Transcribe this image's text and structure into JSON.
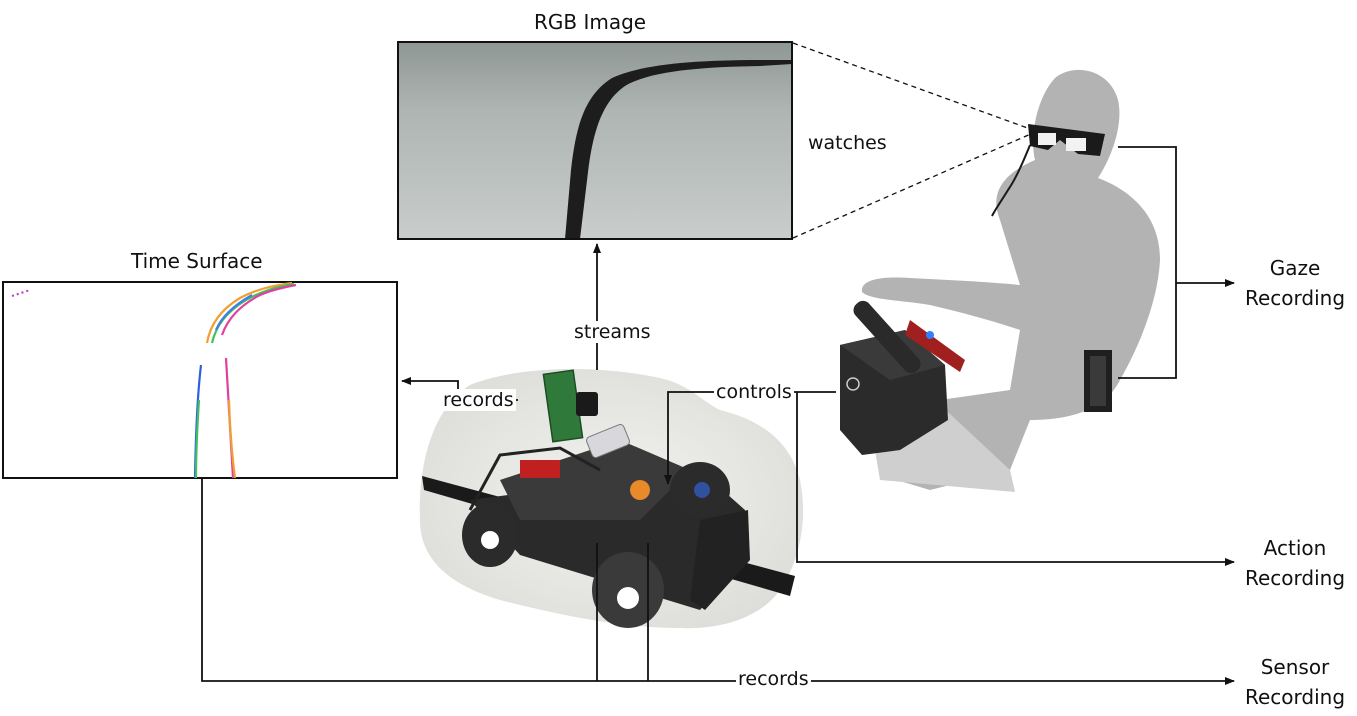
{
  "titles": {
    "rgb_image": "RGB Image",
    "time_surface": "Time Surface"
  },
  "edges": {
    "watches": "watches",
    "streams": "streams",
    "records_left": "records",
    "controls": "controls",
    "records_bottom": "records"
  },
  "outputs": {
    "gaze": [
      "Gaze",
      "Recording"
    ],
    "action": [
      "Action",
      "Recording"
    ],
    "sensor": [
      "Sensor",
      "Recording"
    ]
  },
  "colors": {
    "line": "#111111",
    "silhouette": "#b3b3b3",
    "track": "#1a1a1a",
    "car_blob": "#e9e9e6"
  },
  "icons": [
    "rgb-camera-view",
    "time-surface-events",
    "rc-car-photo",
    "driver-silhouette",
    "eye-tracking-glasses",
    "steering-wheel-controller",
    "recorder-device"
  ]
}
